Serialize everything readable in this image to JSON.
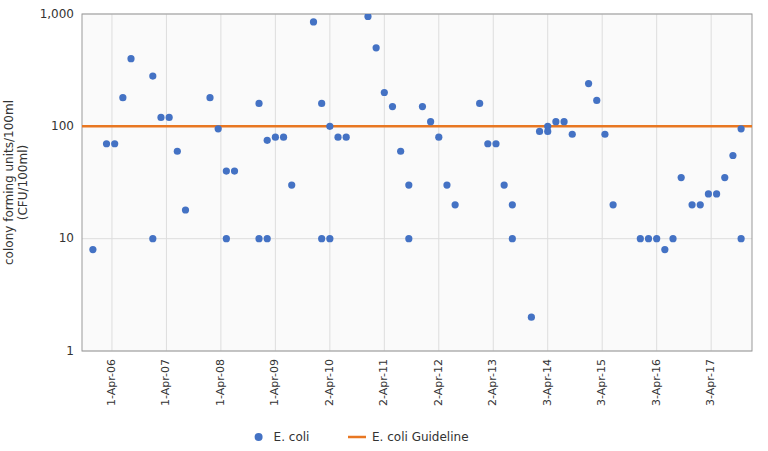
{
  "chart_data": {
    "type": "scatter",
    "y_label": "colony forming units/100ml\n(CFU/100ml)",
    "log": "y",
    "grid": true,
    "legend": "bottom",
    "xlim": [
      2005.45,
      2017.75
    ],
    "xticks": [
      {
        "value": 2006,
        "label": "1-Apr-06"
      },
      {
        "value": 2007,
        "label": "1-Apr-07"
      },
      {
        "value": 2008,
        "label": "1-Apr-08"
      },
      {
        "value": 2009,
        "label": "1-Apr-09"
      },
      {
        "value": 2010,
        "label": "2-Apr-10"
      },
      {
        "value": 2011,
        "label": "2-Apr-11"
      },
      {
        "value": 2012,
        "label": "2-Apr-12"
      },
      {
        "value": 2013,
        "label": "2-Apr-13"
      },
      {
        "value": 2014,
        "label": "3-Apr-14"
      },
      {
        "value": 2015,
        "label": "3-Apr-15"
      },
      {
        "value": 2016,
        "label": "3-Apr-16"
      },
      {
        "value": 2017,
        "label": "3-Apr-17"
      }
    ],
    "ylim": [
      1,
      1000
    ],
    "yticks": [
      1,
      10,
      100,
      {
        "value": 1000,
        "label": "1,000"
      }
    ],
    "series": [
      {
        "name": "E. coli",
        "type": "scatter",
        "color": "#4472C4",
        "marker": "circle",
        "x": [
          2005.65,
          2005.9,
          2006.05,
          2006.2,
          2006.35,
          2006.75,
          2006.9,
          2007.05,
          2007.2,
          2007.35,
          2006.75,
          2007.8,
          2007.95,
          2008.1,
          2008.25,
          2008.1,
          2008.7,
          2008.85,
          2009,
          2009.15,
          2009.3,
          2008.7,
          2008.85,
          2009.7,
          2009.85,
          2010,
          2010.15,
          2010.3,
          2009.85,
          2010,
          2010.7,
          2010.85,
          2011,
          2011.15,
          2011.3,
          2011.45,
          2011.45,
          2011.7,
          2011.85,
          2012,
          2012.15,
          2012.3,
          2012.75,
          2012.9,
          2013.05,
          2013.2,
          2013.35,
          2013.35,
          2013.7,
          2013.85,
          2014,
          2014.15,
          2014.3,
          2014.45,
          2014,
          2014.75,
          2014.9,
          2015.05,
          2015.2,
          2015.7,
          2015.85,
          2016,
          2016.15,
          2016.3,
          2016.45,
          2016.65,
          2016.8,
          2016.95,
          2017.1,
          2017.25,
          2017.4,
          2017.55,
          2017.55
        ],
        "values": [
          8,
          70,
          70,
          180,
          400,
          280,
          120,
          120,
          60,
          18,
          10,
          180,
          95,
          40,
          40,
          10,
          160,
          75,
          80,
          80,
          30,
          10,
          10,
          850,
          160,
          100,
          80,
          80,
          10,
          10,
          950,
          500,
          200,
          150,
          60,
          30,
          10,
          150,
          110,
          80,
          30,
          20,
          160,
          70,
          70,
          30,
          20,
          10,
          2,
          90,
          100,
          110,
          110,
          85,
          90,
          240,
          170,
          85,
          20,
          10,
          10,
          10,
          8,
          10,
          35,
          20,
          20,
          25,
          25,
          35,
          55,
          10,
          95
        ]
      },
      {
        "name": "E. coli Guideline",
        "type": "line",
        "color": "#E87722",
        "line_style": "solid",
        "x": [
          2005.45,
          2017.75
        ],
        "values": [
          100,
          100
        ]
      }
    ]
  }
}
